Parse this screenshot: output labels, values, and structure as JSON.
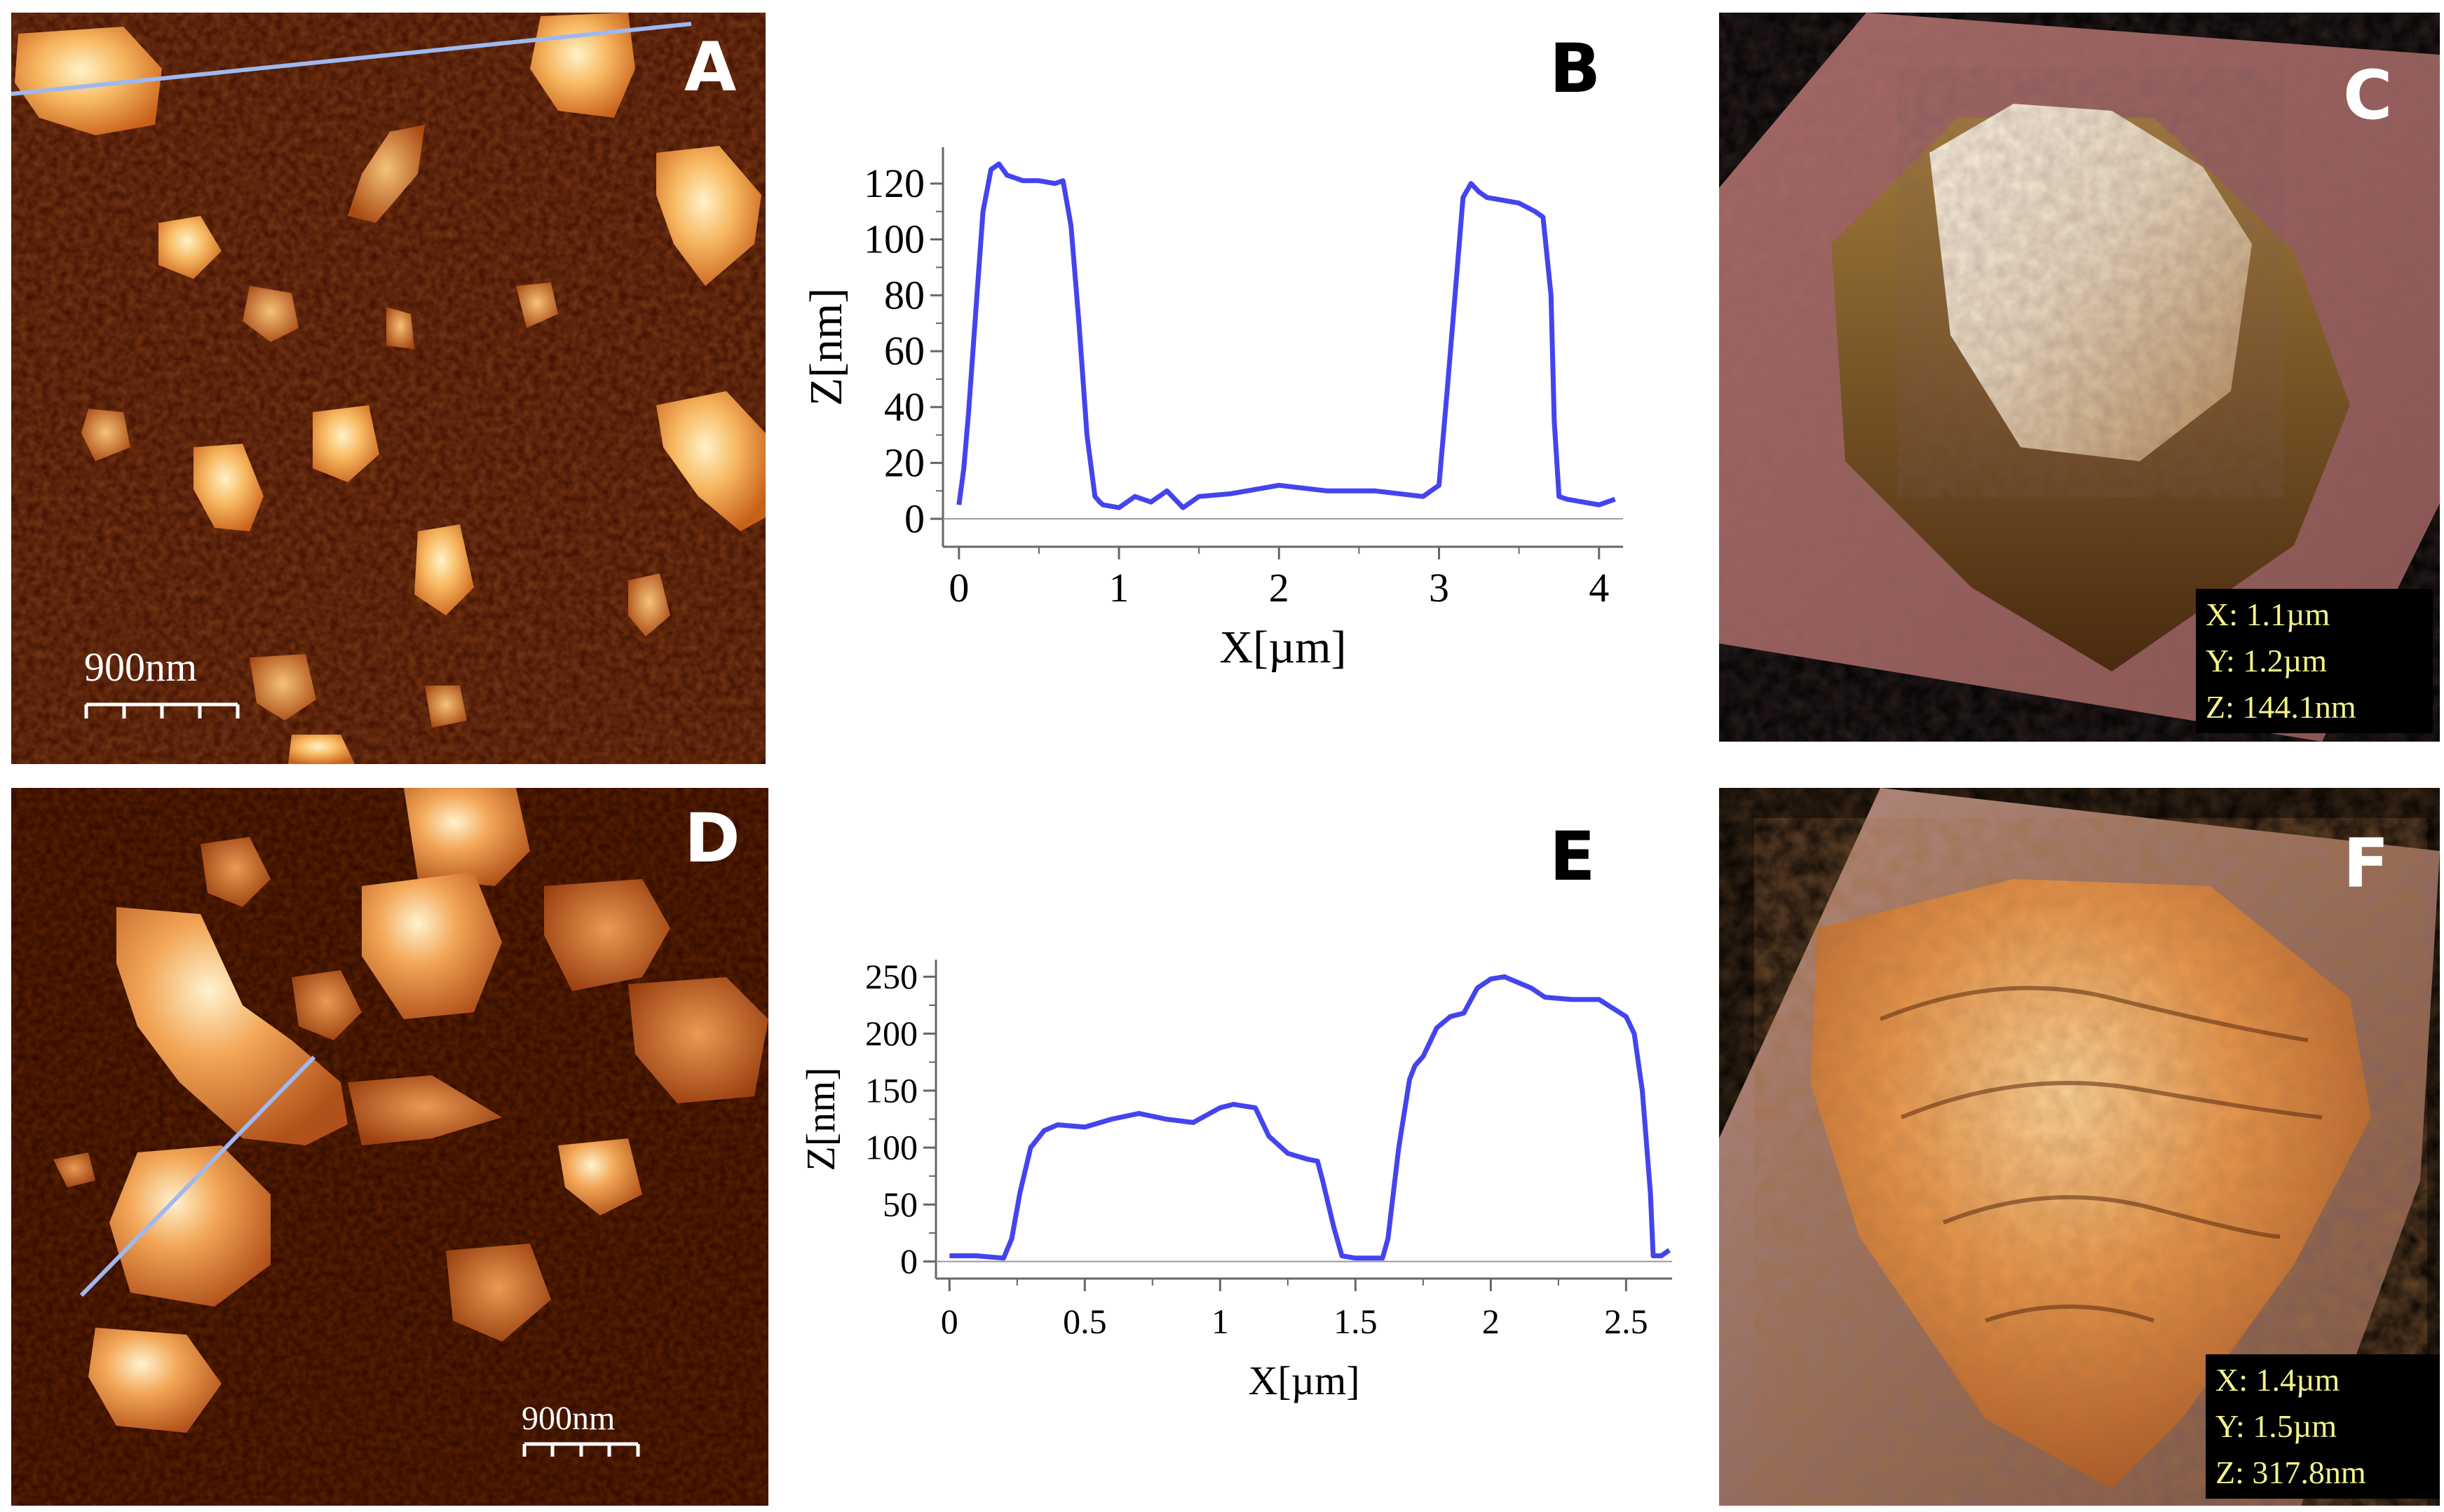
{
  "panels": {
    "A": {
      "letter": "A",
      "scalebar": "900nm"
    },
    "B": {
      "letter": "B"
    },
    "C": {
      "letter": "C",
      "x": "X: 1.1µm",
      "y": "Y: 1.2µm",
      "z": "Z: 144.1nm"
    },
    "D": {
      "letter": "D",
      "scalebar": "900nm"
    },
    "E": {
      "letter": "E"
    },
    "F": {
      "letter": "F",
      "x": "X: 1.4µm",
      "y": "Y: 1.5µm",
      "z": "Z: 317.8nm"
    }
  },
  "colors": {
    "line": "#4444ee",
    "profile": "#9fb8f0",
    "afm_dark": "#3a0c00",
    "afm_bright": "#fff0c0"
  },
  "chart_data": [
    {
      "id": "B",
      "type": "line",
      "xlabel": "X[µm]",
      "ylabel": "Z[nm]",
      "xlim": [
        -0.1,
        4.15
      ],
      "ylim": [
        -10,
        133
      ],
      "xticks": [
        0,
        1,
        2,
        3,
        4
      ],
      "xtick_labels": [
        "0",
        "1",
        "2",
        "3",
        "4"
      ],
      "yticks": [
        0,
        20,
        40,
        60,
        80,
        100,
        120
      ],
      "ytick_labels": [
        "0",
        "20",
        "40",
        "60",
        "80",
        "100",
        "120"
      ],
      "series": [
        {
          "x": [
            0,
            0.03,
            0.06,
            0.1,
            0.15,
            0.2,
            0.25,
            0.3,
            0.35,
            0.4,
            0.5,
            0.6,
            0.65,
            0.7,
            0.75,
            0.8,
            0.85,
            0.88,
            0.9,
            1.0,
            1.1,
            1.2,
            1.3,
            1.4,
            1.5,
            1.7,
            2.0,
            2.3,
            2.6,
            2.9,
            3.0,
            3.05,
            3.1,
            3.15,
            3.2,
            3.25,
            3.3,
            3.5,
            3.6,
            3.65,
            3.7,
            3.72,
            3.75,
            3.8,
            3.9,
            4.0,
            4.1
          ],
          "y": [
            5,
            18,
            38,
            70,
            110,
            125,
            127,
            123,
            122,
            121,
            121,
            120,
            121,
            105,
            70,
            30,
            8,
            6,
            5,
            4,
            8,
            6,
            10,
            4,
            8,
            9,
            12,
            10,
            10,
            8,
            12,
            45,
            80,
            115,
            120,
            117,
            115,
            113,
            110,
            108,
            80,
            35,
            8,
            7,
            6,
            5,
            7
          ]
        }
      ]
    },
    {
      "id": "E",
      "type": "line",
      "xlabel": "X[µm]",
      "ylabel": "Z[nm]",
      "xlim": [
        -0.05,
        2.67
      ],
      "ylim": [
        -15,
        265
      ],
      "xticks": [
        0,
        0.5,
        1,
        1.5,
        2,
        2.5
      ],
      "xtick_labels": [
        "0",
        "0.5",
        "1",
        "1.5",
        "2",
        "2.5"
      ],
      "yticks": [
        0,
        50,
        100,
        150,
        200,
        250
      ],
      "ytick_labels": [
        "0",
        "50",
        "100",
        "150",
        "200",
        "250"
      ],
      "series": [
        {
          "x": [
            0,
            0.1,
            0.2,
            0.23,
            0.26,
            0.3,
            0.35,
            0.4,
            0.5,
            0.6,
            0.7,
            0.8,
            0.9,
            1.0,
            1.05,
            1.1,
            1.13,
            1.18,
            1.25,
            1.32,
            1.36,
            1.38,
            1.42,
            1.45,
            1.5,
            1.55,
            1.6,
            1.62,
            1.66,
            1.7,
            1.72,
            1.75,
            1.8,
            1.85,
            1.9,
            1.95,
            2.0,
            2.05,
            2.1,
            2.15,
            2.2,
            2.3,
            2.4,
            2.5,
            2.53,
            2.56,
            2.59,
            2.6,
            2.63,
            2.66
          ],
          "y": [
            5,
            5,
            3,
            20,
            60,
            100,
            115,
            120,
            118,
            125,
            130,
            125,
            122,
            135,
            138,
            136,
            135,
            110,
            95,
            90,
            88,
            70,
            30,
            5,
            3,
            3,
            3,
            20,
            100,
            160,
            172,
            180,
            205,
            215,
            218,
            240,
            248,
            250,
            245,
            240,
            232,
            230,
            230,
            215,
            200,
            150,
            60,
            5,
            5,
            10
          ]
        }
      ]
    }
  ]
}
